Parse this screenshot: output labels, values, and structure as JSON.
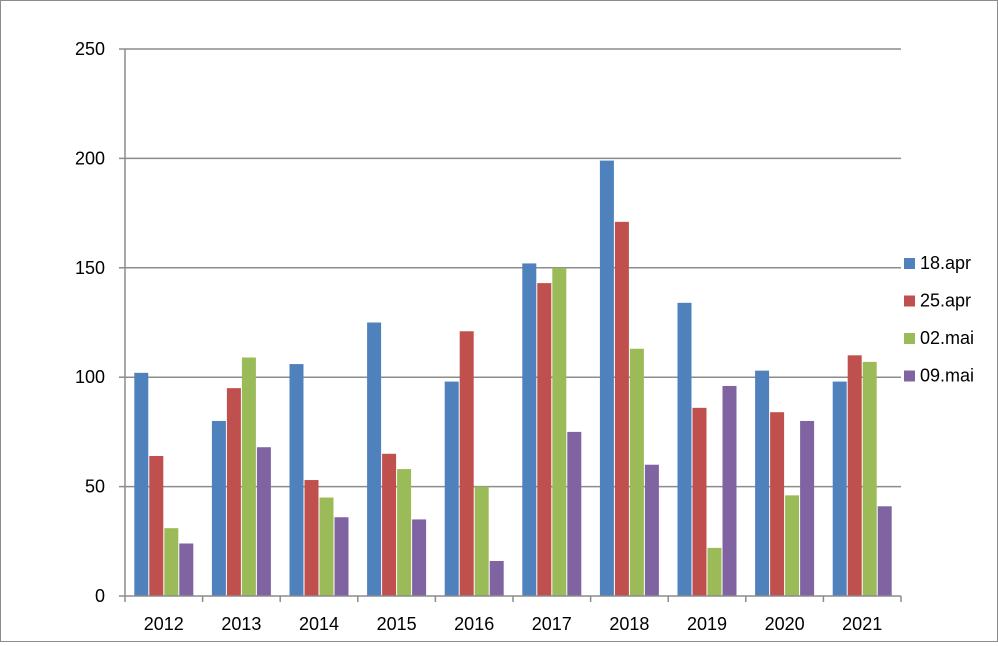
{
  "chart_data": {
    "type": "bar",
    "title": "",
    "xlabel": "",
    "ylabel": "",
    "categories": [
      "2012",
      "2013",
      "2014",
      "2015",
      "2016",
      "2017",
      "2018",
      "2019",
      "2020",
      "2021"
    ],
    "ylim": [
      0,
      250
    ],
    "yticks": [
      "0",
      "50",
      "100",
      "150",
      "200",
      "250"
    ],
    "grid": true,
    "legend_position": "right",
    "series": [
      {
        "name": "18.apr",
        "color": "#4f81bd",
        "values": [
          102,
          80,
          106,
          125,
          98,
          152,
          199,
          134,
          103,
          98
        ]
      },
      {
        "name": "25.apr",
        "color": "#c0504d",
        "values": [
          64,
          95,
          53,
          65,
          121,
          143,
          171,
          86,
          84,
          110
        ]
      },
      {
        "name": "02.mai",
        "color": "#9bbb59",
        "values": [
          31,
          109,
          45,
          58,
          50,
          150,
          113,
          22,
          46,
          107
        ]
      },
      {
        "name": "09.mai",
        "color": "#8064a2",
        "values": [
          24,
          68,
          36,
          35,
          16,
          75,
          60,
          96,
          80,
          41
        ]
      }
    ]
  }
}
